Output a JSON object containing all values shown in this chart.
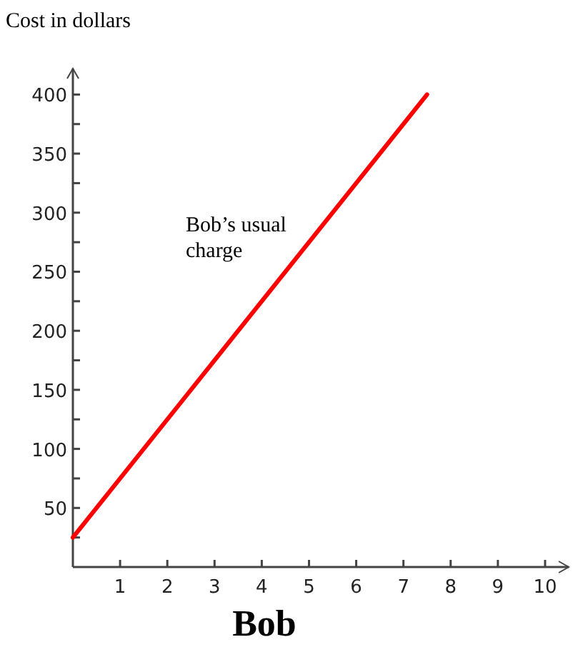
{
  "chart_data": {
    "type": "line",
    "title": "Bob",
    "ylabel": "Cost in dollars",
    "x": [
      0,
      7.5
    ],
    "series": [
      {
        "name": "Bob’s usual charge",
        "color": "#ff0000",
        "values": [
          25,
          400
        ]
      }
    ],
    "xlim": [
      0,
      10.5
    ],
    "ylim": [
      0,
      422
    ],
    "xticks": [
      1,
      2,
      3,
      4,
      5,
      6,
      7,
      8,
      9,
      10
    ],
    "yticks": [
      {
        "value": 25,
        "label": null
      },
      50,
      {
        "value": 75,
        "label": null
      },
      100,
      {
        "value": 125,
        "label": null
      },
      150,
      {
        "value": 175,
        "label": null
      },
      200,
      {
        "value": 225,
        "label": null
      },
      250,
      {
        "value": 275,
        "label": null
      },
      300,
      {
        "value": 325,
        "label": null
      },
      350,
      {
        "value": 375,
        "label": null
      },
      400
    ],
    "grid": false,
    "legend": false,
    "marker": "none",
    "line_style": "solid"
  }
}
